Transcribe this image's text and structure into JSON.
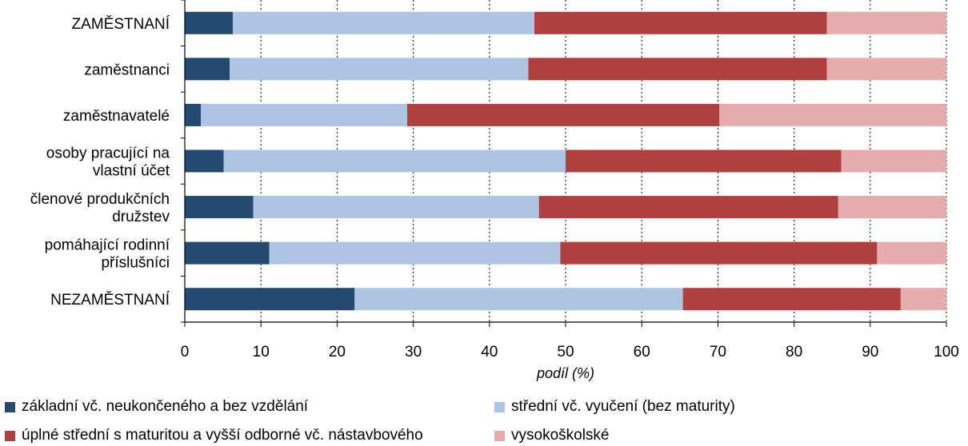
{
  "chart_data": {
    "type": "bar",
    "orientation": "horizontal",
    "stacked": true,
    "categories": [
      [
        "ZAMĚSTNANÍ"
      ],
      [
        "zaměstnanci"
      ],
      [
        "zaměstnavatelé"
      ],
      [
        "osoby pracující na",
        "vlastní účet"
      ],
      [
        "členové produkčních",
        "družstev"
      ],
      [
        "pomáhající rodinní",
        "příslušníci"
      ],
      [
        "NEZAMĚSTNANÍ"
      ]
    ],
    "series": [
      {
        "name": "základní vč. neukončeného a bez vzdělání",
        "color": "#244a72",
        "values": [
          6.3,
          5.9,
          2.1,
          5.1,
          9.0,
          11.1,
          22.3
        ]
      },
      {
        "name": "střední vč. vyučení (bez maturity)",
        "color": "#adc5e2",
        "values": [
          39.6,
          39.2,
          27.1,
          44.9,
          37.5,
          38.2,
          43.1
        ]
      },
      {
        "name": "úplné střední s maturitou a vyšší odborné vč. nástavbového",
        "color": "#b04040",
        "values": [
          38.4,
          39.2,
          41.0,
          36.2,
          39.3,
          41.6,
          28.6
        ]
      },
      {
        "name": "vysokoškolské",
        "color": "#e5abad",
        "values": [
          15.7,
          15.7,
          29.8,
          13.8,
          14.2,
          9.1,
          6.0
        ]
      }
    ],
    "xlim": [
      0,
      100
    ],
    "xticks": [
      "0",
      "10",
      "20",
      "30",
      "40",
      "50",
      "60",
      "70",
      "80",
      "90",
      "100"
    ],
    "xlabel": "podíl (%)",
    "grid": "vertical dotted",
    "legend_position": "bottom"
  }
}
